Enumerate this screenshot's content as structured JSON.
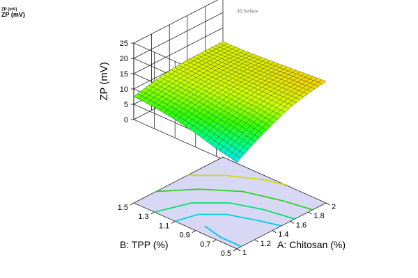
{
  "header": {
    "response_small": "ZP (mV)",
    "response_main": "ZP (mV)"
  },
  "chart_data": {
    "type": "surface",
    "title": "3D Surface",
    "zlabel": "ZP (mV)",
    "xlabel": "A: Chitosan (%)",
    "ylabel": "B: TPP (%)",
    "xlim": [
      1,
      2
    ],
    "ylim": [
      0.5,
      1.5
    ],
    "zlim": [
      0,
      25
    ],
    "x_ticks": [
      "1",
      "1.2",
      "1.4",
      "1.6",
      "1.8",
      "2"
    ],
    "y_ticks": [
      "0.5",
      "0.7",
      "0.9",
      "1.1",
      "1.3",
      "1.5"
    ],
    "z_ticks": [
      "0",
      "5",
      "10",
      "15",
      "20",
      "25"
    ],
    "surface_grid": {
      "x": [
        1,
        1.2,
        1.4,
        1.6,
        1.8,
        2
      ],
      "y": [
        0.5,
        0.7,
        0.9,
        1.1,
        1.3,
        1.5
      ],
      "z": [
        [
          1.0,
          4.5,
          7.5,
          10.0,
          11.5,
          12.5
        ],
        [
          2.5,
          6.0,
          8.5,
          10.2,
          11.3,
          12.0
        ],
        [
          4.5,
          7.0,
          9.0,
          10.3,
          11.0,
          11.5
        ],
        [
          6.0,
          8.0,
          9.5,
          10.3,
          10.8,
          11.0
        ],
        [
          7.0,
          8.6,
          9.8,
          10.4,
          10.6,
          10.6
        ],
        [
          7.5,
          9.0,
          10.0,
          10.5,
          10.5,
          10.5
        ]
      ]
    },
    "contour_floor": true,
    "colormap": [
      "#00e5ff",
      "#00ff80",
      "#33ff00",
      "#ccff00",
      "#ffd000"
    ],
    "grid": true
  }
}
